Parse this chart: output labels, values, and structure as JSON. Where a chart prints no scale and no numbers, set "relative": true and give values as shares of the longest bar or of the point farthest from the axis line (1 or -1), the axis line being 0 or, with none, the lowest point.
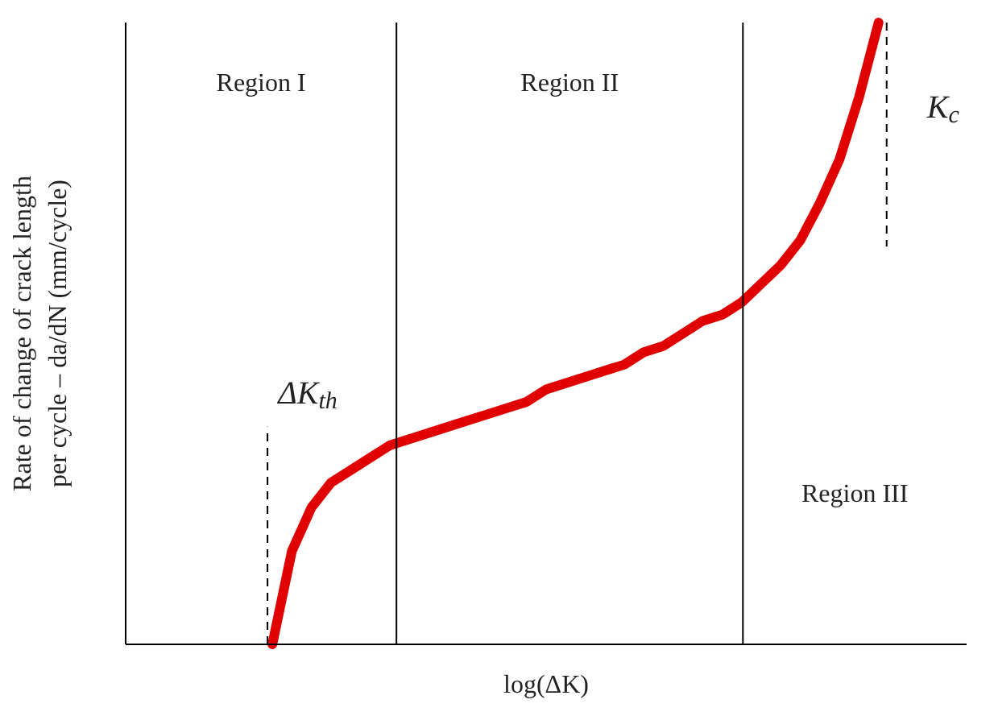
{
  "chart_data": {
    "type": "line",
    "relative": true,
    "xlabel": "log(ΔK)",
    "ylabel": "Rate of change of crack length per cycle – da/dN (mm/cycle)",
    "tick_labels": false,
    "categories": [
      null,
      null,
      null,
      null,
      null,
      null,
      null,
      null,
      null,
      null,
      null,
      null,
      null,
      null,
      null,
      null,
      null,
      null,
      null,
      null,
      null,
      null,
      null,
      null,
      null,
      null,
      null,
      null,
      null,
      null,
      null,
      null,
      null,
      null,
      null,
      null,
      null,
      null,
      null,
      null,
      null,
      null,
      null
    ],
    "series": [
      {
        "color": "#e00000",
        "values": [
          null,
          null,
          null,
          null,
          null,
          null,
          null,
          0,
          0.15,
          0.22,
          0.26,
          0.28,
          0.3,
          0.32,
          0.33,
          0.34,
          0.35,
          0.36,
          0.37,
          0.38,
          0.39,
          0.41,
          0.42,
          0.43,
          0.44,
          0.45,
          0.47,
          0.48,
          0.5,
          0.52,
          0.53,
          0.55,
          0.58,
          0.61,
          0.65,
          0.71,
          0.78,
          0.88,
          1.0,
          null,
          null,
          null,
          null
        ]
      }
    ],
    "annotations": [
      "Region I",
      "Region II",
      "Region III",
      "ΔK$_{th}$",
      "K$_{c}$"
    ]
  }
}
